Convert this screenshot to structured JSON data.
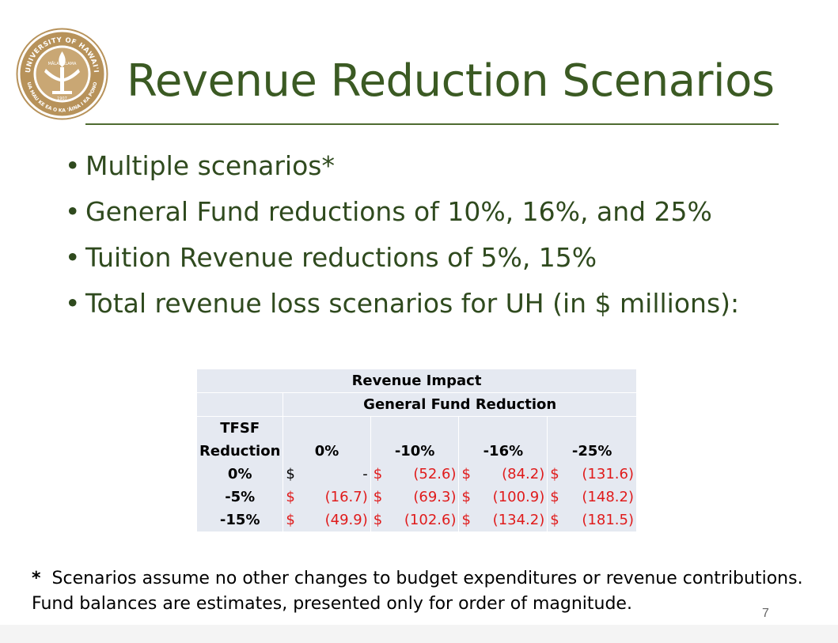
{
  "logo": {
    "ring_text_top": "UNIVERSITY OF HAWAI'I",
    "ring_text_bottom": "UA MAU KE EA O KA 'ĀINA I KA PONO",
    "inner_text": "MĀLAMALAMA",
    "year": "1907",
    "color": "#b7925a"
  },
  "title": "Revenue Reduction Scenarios",
  "bullets": [
    "Multiple scenarios*",
    "General Fund reductions of 10%, 16%, and 25%",
    "Tuition Revenue reductions of 5%, 15%",
    "Total revenue loss scenarios for UH (in $ millions):"
  ],
  "table": {
    "header1": "Revenue Impact",
    "header2": "General Fund Reduction",
    "row_label_header_line1": "TFSF",
    "row_label_header_line2": "Reduction",
    "columns": [
      "0%",
      "-10%",
      "-16%",
      "-25%"
    ],
    "currency": "$",
    "rows": [
      {
        "label": "0%",
        "values": [
          "-",
          "(52.6)",
          "(84.2)",
          "(131.6)"
        ]
      },
      {
        "label": "-5%",
        "values": [
          "(16.7)",
          "(69.3)",
          "(100.9)",
          "(148.2)"
        ]
      },
      {
        "label": "-15%",
        "values": [
          "(49.9)",
          "(102.6)",
          "(134.2)",
          "(181.5)"
        ]
      }
    ]
  },
  "footnote": {
    "marker": "*",
    "line1": "Scenarios assume no other changes to budget expenditures or revenue contributions.",
    "line2": "Fund balances are estimates, presented only for order of magnitude."
  },
  "page_number": "7",
  "colors": {
    "title": "#3b5a23",
    "negative": "#e01b1b",
    "table_bg": "#e5e9f1"
  }
}
